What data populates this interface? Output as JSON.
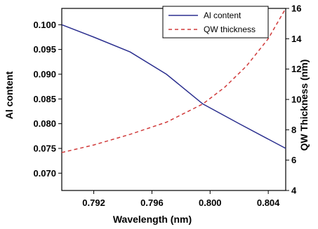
{
  "chart_data": {
    "type": "line",
    "xlabel": "Wavelength (nm)",
    "ylabel": "Al content",
    "y2label": "QW Thickness (nm)",
    "xlim": [
      0.7898,
      0.8052
    ],
    "ylim": [
      0.0665,
      0.1033
    ],
    "y2lim": [
      4,
      16
    ],
    "xticks": [
      0.792,
      0.796,
      0.8,
      0.804
    ],
    "xtick_labels": [
      "0.792",
      "0.796",
      "0.800",
      "0.804"
    ],
    "yticks": [
      0.07,
      0.075,
      0.08,
      0.085,
      0.09,
      0.095,
      0.1
    ],
    "ytick_labels": [
      "0.070",
      "0.075",
      "0.080",
      "0.085",
      "0.090",
      "0.095",
      "0.100"
    ],
    "y2ticks": [
      4,
      6,
      8,
      10,
      12,
      14,
      16
    ],
    "y2tick_labels": [
      "4",
      "6",
      "8",
      "10",
      "12",
      "14",
      "16"
    ],
    "legend_position": "top-right",
    "grid": false,
    "series": [
      {
        "name": "Al content",
        "axis": "left",
        "color": "#2b2f8f",
        "style": "solid",
        "x": [
          0.7898,
          0.792,
          0.7945,
          0.797,
          0.7995,
          0.802,
          0.8052
        ],
        "y": [
          0.1,
          0.0975,
          0.0945,
          0.09,
          0.084,
          0.08,
          0.075
        ]
      },
      {
        "name": "QW thickness",
        "axis": "right",
        "color": "#d03a3a",
        "style": "dashed",
        "x": [
          0.7898,
          0.792,
          0.7945,
          0.797,
          0.7995,
          0.801,
          0.8025,
          0.804,
          0.8052
        ],
        "y": [
          6.5,
          7.0,
          7.7,
          8.5,
          9.7,
          10.8,
          12.2,
          14.0,
          16.0
        ]
      }
    ]
  }
}
